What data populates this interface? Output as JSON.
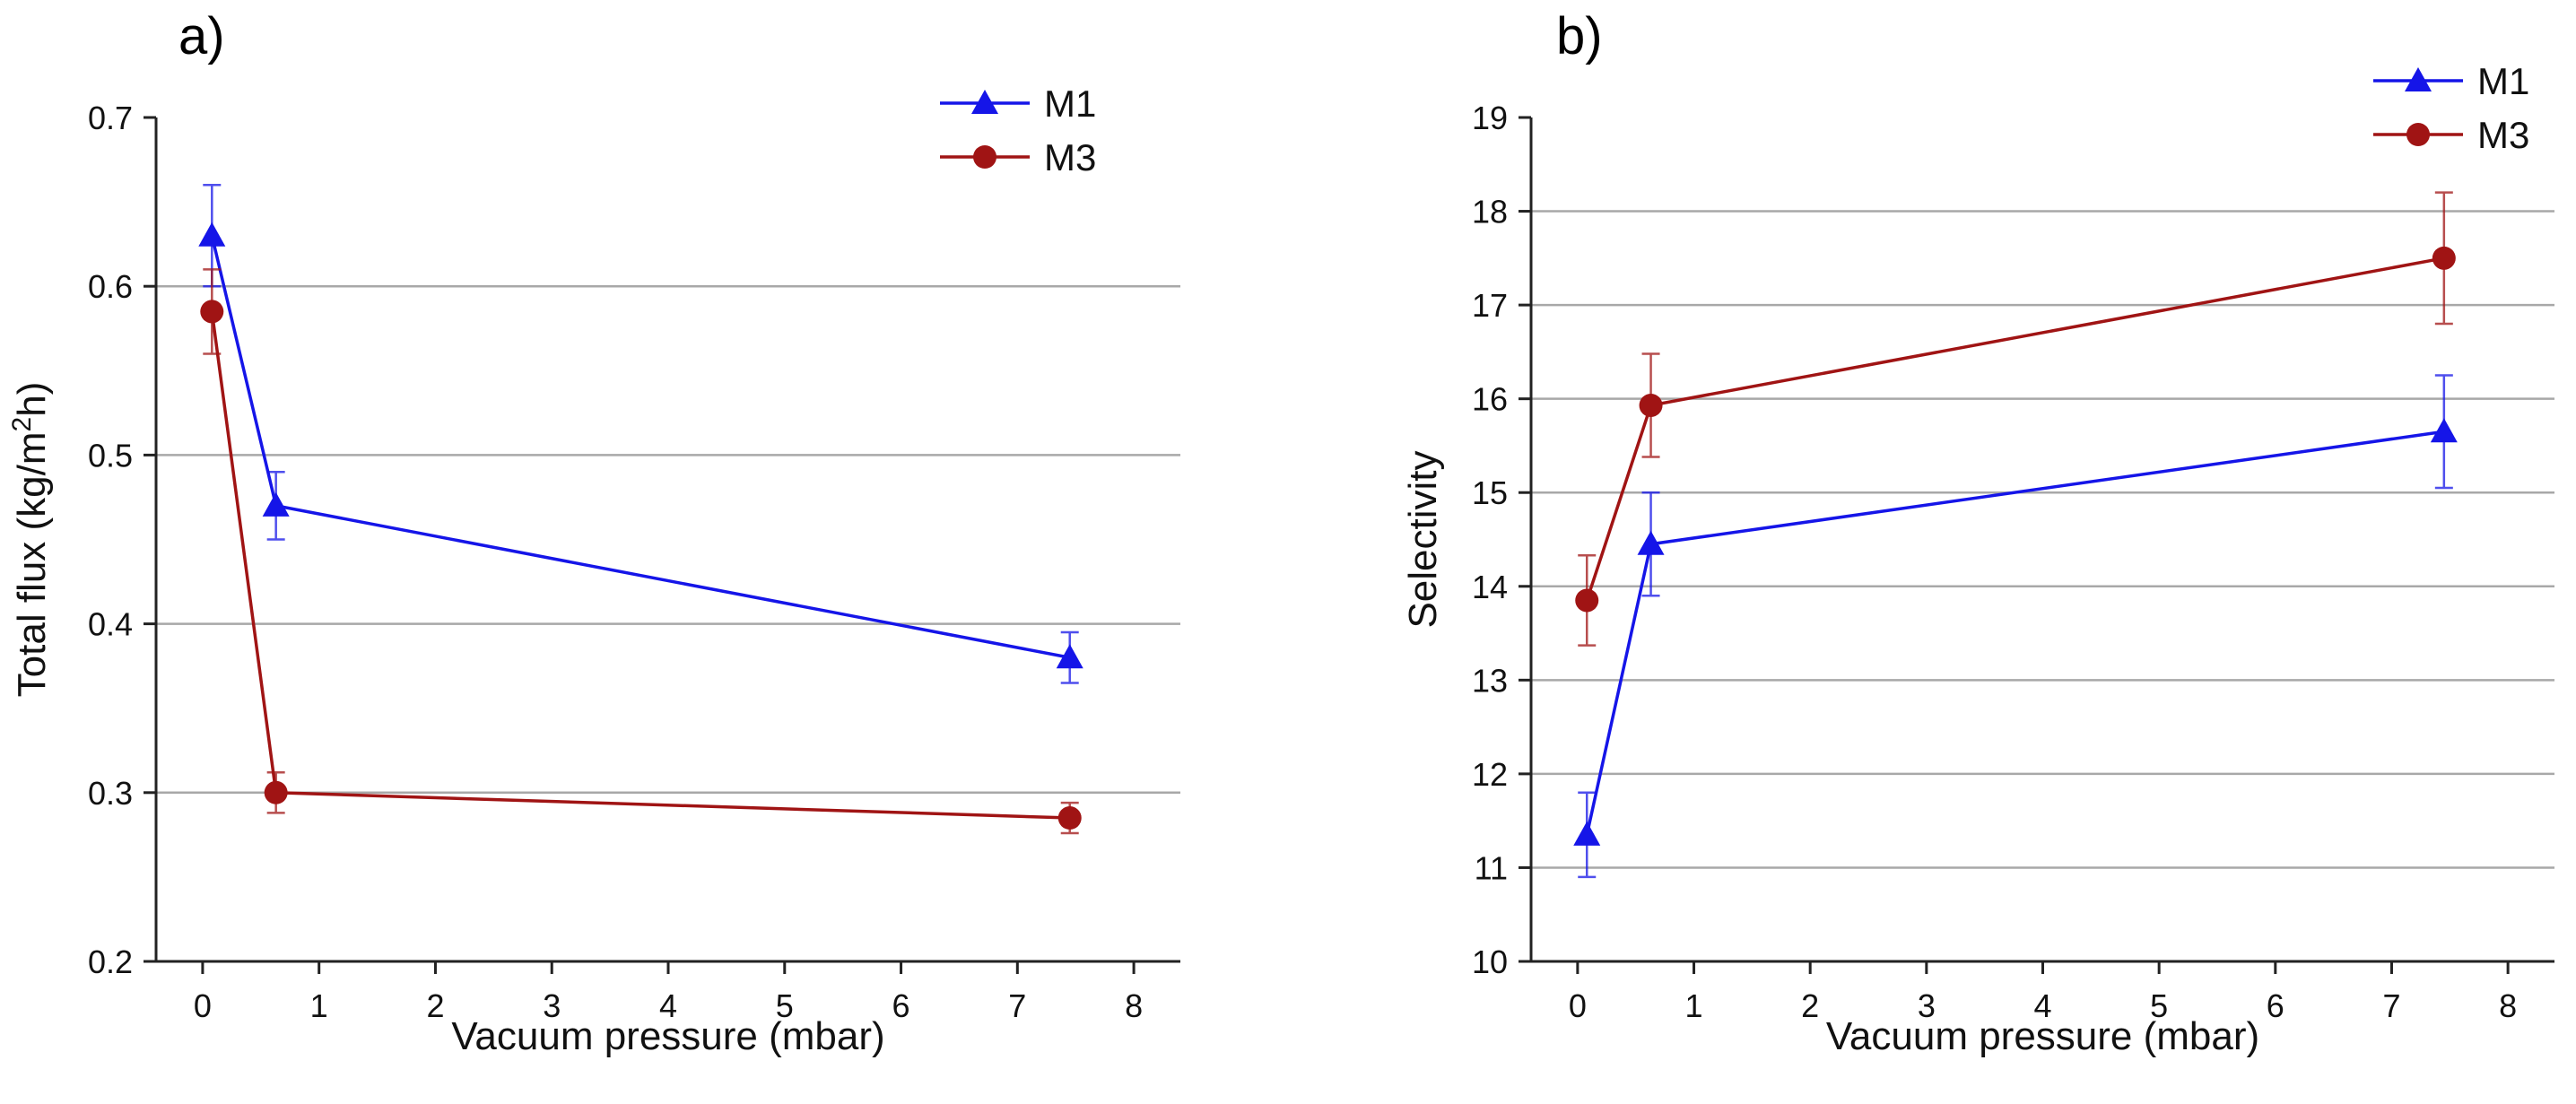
{
  "figure": {
    "panel_labels": [
      "a)",
      "b)"
    ]
  },
  "colors": {
    "M1": "#1515e8",
    "M3": "#a01414",
    "grid": "#a8a8a8",
    "axis": "#222222"
  },
  "chart_data": [
    {
      "type": "line",
      "panel": "a)",
      "title": "",
      "xlabel": "Vacuum pressure (mbar)",
      "ylabel": "Total flux (kg/m²h)",
      "ylabel_parts": {
        "pre": "Total flux (kg/m",
        "sup": "2",
        "post": "h)"
      },
      "xlim": [
        -0.4,
        8.4
      ],
      "ylim": [
        0.2,
        0.7
      ],
      "xticks": [
        0,
        1,
        2,
        3,
        4,
        5,
        6,
        7,
        8
      ],
      "xtick_labels": [
        "0",
        "1",
        "2",
        "3",
        "4",
        "5",
        "6",
        "7",
        "8"
      ],
      "yticks": [
        0.2,
        0.3,
        0.4,
        0.5,
        0.6,
        0.7
      ],
      "ytick_labels": [
        "0.2",
        "0.3",
        "0.4",
        "0.5",
        "0.6",
        "0.7"
      ],
      "gridlines_y": [
        0.3,
        0.4,
        0.5,
        0.6
      ],
      "legend": {
        "position": "top-right",
        "entries": [
          "M1",
          "M3"
        ]
      },
      "series": [
        {
          "name": "M1",
          "marker": "triangle",
          "x": [
            0.08,
            0.63,
            7.45
          ],
          "y": [
            0.63,
            0.47,
            0.38
          ],
          "err": [
            0.03,
            0.02,
            0.015
          ]
        },
        {
          "name": "M3",
          "marker": "circle",
          "x": [
            0.08,
            0.63,
            7.45
          ],
          "y": [
            0.585,
            0.3,
            0.285
          ],
          "err": [
            0.025,
            0.012,
            0.009
          ]
        }
      ]
    },
    {
      "type": "line",
      "panel": "b)",
      "title": "",
      "xlabel": "Vacuum pressure (mbar)",
      "ylabel": "Selectivity",
      "xlim": [
        -0.4,
        8.4
      ],
      "ylim": [
        10,
        19
      ],
      "xticks": [
        0,
        1,
        2,
        3,
        4,
        5,
        6,
        7,
        8
      ],
      "xtick_labels": [
        "0",
        "1",
        "2",
        "3",
        "4",
        "5",
        "6",
        "7",
        "8"
      ],
      "yticks": [
        10,
        11,
        12,
        13,
        14,
        15,
        16,
        17,
        18,
        19
      ],
      "ytick_labels": [
        "10",
        "11",
        "12",
        "13",
        "14",
        "15",
        "16",
        "17",
        "18",
        "19"
      ],
      "gridlines_y": [
        11,
        12,
        13,
        14,
        15,
        16,
        17,
        18
      ],
      "legend": {
        "position": "top-right",
        "entries": [
          "M1",
          "M3"
        ]
      },
      "series": [
        {
          "name": "M1",
          "marker": "triangle",
          "x": [
            0.08,
            0.63,
            7.45
          ],
          "y": [
            11.35,
            14.45,
            15.65
          ],
          "err": [
            0.45,
            0.55,
            0.6
          ]
        },
        {
          "name": "M3",
          "marker": "circle",
          "x": [
            0.08,
            0.63,
            7.45
          ],
          "y": [
            13.85,
            15.93,
            17.5
          ],
          "err": [
            0.48,
            0.55,
            0.7
          ]
        }
      ]
    }
  ]
}
